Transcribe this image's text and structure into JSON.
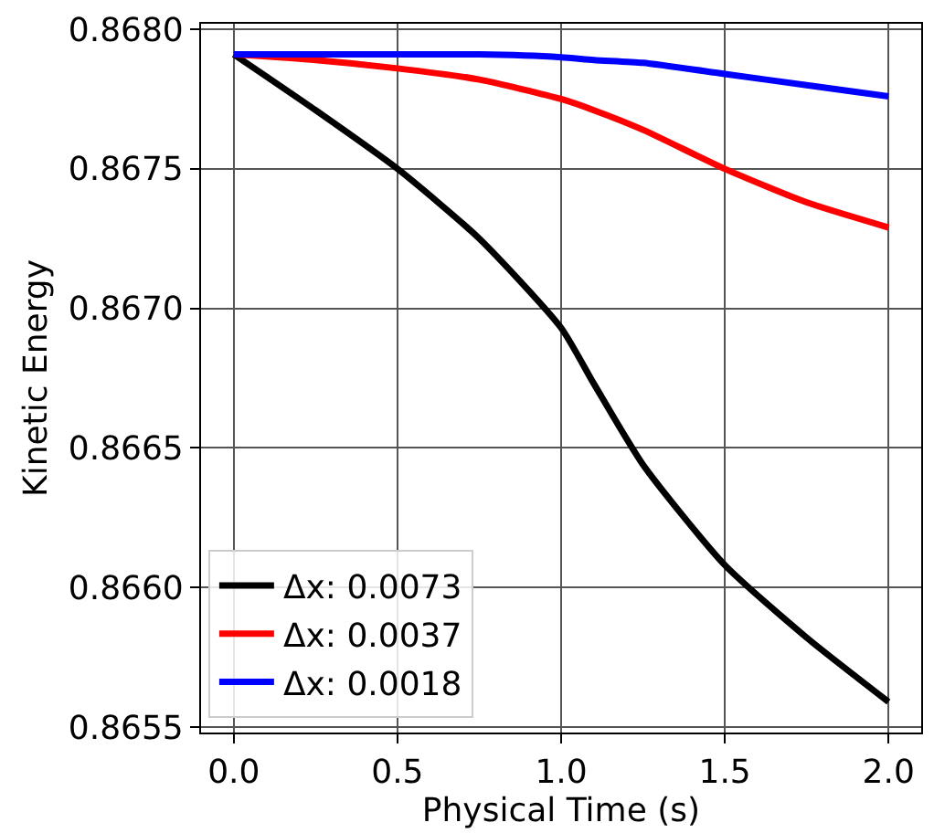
{
  "chart_data": {
    "type": "line",
    "xlabel": "Physical Time (s)",
    "ylabel": "Kinetic Energy",
    "x": [
      0,
      0.25,
      0.5,
      0.75,
      1.0,
      1.1,
      1.25,
      1.5,
      1.75,
      2.0
    ],
    "series": [
      {
        "name": "Δx: 0.0073",
        "color": "#000000",
        "values": [
          0.86791,
          0.86771,
          0.8675,
          0.86725,
          0.86693,
          0.86673,
          0.86644,
          0.86608,
          0.86582,
          0.86559
        ]
      },
      {
        "name": "Δx: 0.0037",
        "color": "#ff0000",
        "values": [
          0.86791,
          0.86789,
          0.86786,
          0.86782,
          0.86775,
          0.86771,
          0.86764,
          0.8675,
          0.86738,
          0.86729
        ]
      },
      {
        "name": "Δx: 0.0018",
        "color": "#0000ff",
        "values": [
          0.86791,
          0.86791,
          0.86791,
          0.86791,
          0.8679,
          0.86789,
          0.86788,
          0.86784,
          0.8678,
          0.86776
        ]
      }
    ],
    "xlim": [
      -0.1,
      2.1
    ],
    "xticks": [
      {
        "value": 0,
        "label": "0.0"
      },
      0.5,
      {
        "value": 1,
        "label": "1.0"
      },
      1.5,
      {
        "value": 2,
        "label": "2.0"
      }
    ],
    "ylim": [
      0.86548,
      0.86802
    ],
    "yticks": [
      0.8655,
      {
        "value": 0.866,
        "label": "0.8660"
      },
      0.8665,
      {
        "value": 0.867,
        "label": "0.8670"
      },
      0.8675,
      {
        "value": 0.868,
        "label": "0.8680"
      }
    ],
    "grid": true,
    "legend": "bottom left",
    "marker": "none",
    "line_style": "solid"
  }
}
